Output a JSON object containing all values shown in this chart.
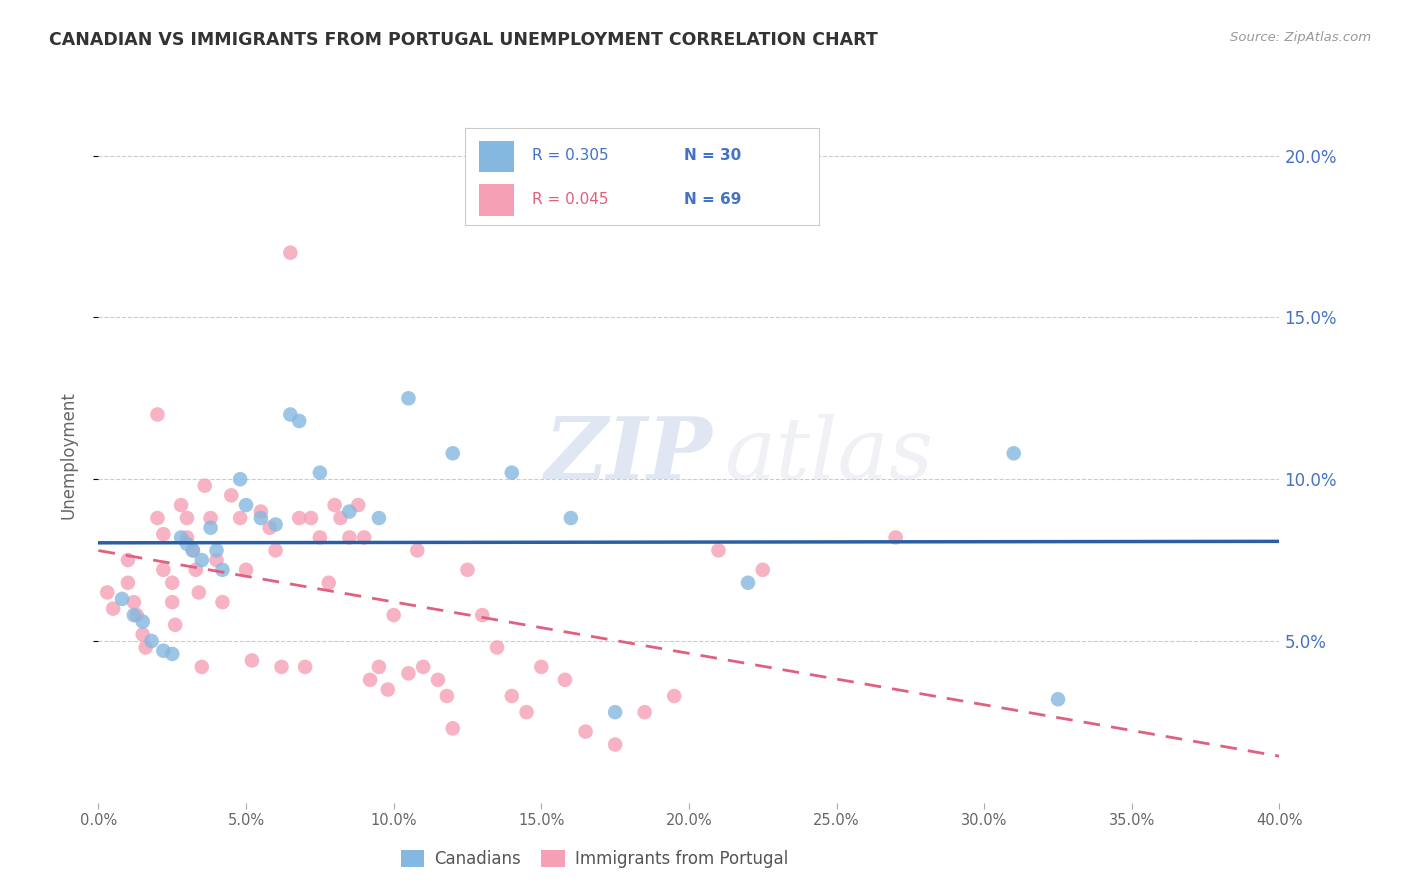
{
  "title": "CANADIAN VS IMMIGRANTS FROM PORTUGAL UNEMPLOYMENT CORRELATION CHART",
  "source": "Source: ZipAtlas.com",
  "ylabel": "Unemployment",
  "ytick_labels": [
    "5.0%",
    "10.0%",
    "15.0%",
    "20.0%"
  ],
  "ytick_values": [
    0.05,
    0.1,
    0.15,
    0.2
  ],
  "xlim": [
    0.0,
    0.4
  ],
  "ylim": [
    0.0,
    0.215
  ],
  "legend_label1": "Canadians",
  "legend_label2": "Immigrants from Portugal",
  "legend_r1": "R = 0.305",
  "legend_n1": "N = 30",
  "legend_r2": "R = 0.045",
  "legend_n2": "N = 69",
  "color_blue": "#85b8e0",
  "color_pink": "#f5a0b5",
  "line_blue": "#2a5fa5",
  "line_pink": "#e06080",
  "watermark_zip": "ZIP",
  "watermark_atlas": "atlas",
  "canadians_x": [
    0.008,
    0.012,
    0.015,
    0.018,
    0.022,
    0.025,
    0.028,
    0.03,
    0.032,
    0.035,
    0.038,
    0.04,
    0.042,
    0.048,
    0.05,
    0.055,
    0.06,
    0.065,
    0.068,
    0.075,
    0.085,
    0.095,
    0.105,
    0.12,
    0.14,
    0.16,
    0.175,
    0.22,
    0.31,
    0.325
  ],
  "canadians_y": [
    0.063,
    0.058,
    0.056,
    0.05,
    0.047,
    0.046,
    0.082,
    0.08,
    0.078,
    0.075,
    0.085,
    0.078,
    0.072,
    0.1,
    0.092,
    0.088,
    0.086,
    0.12,
    0.118,
    0.102,
    0.09,
    0.088,
    0.125,
    0.108,
    0.102,
    0.088,
    0.028,
    0.068,
    0.108,
    0.032
  ],
  "portugal_x": [
    0.003,
    0.005,
    0.01,
    0.01,
    0.012,
    0.013,
    0.015,
    0.016,
    0.02,
    0.02,
    0.022,
    0.022,
    0.025,
    0.025,
    0.026,
    0.028,
    0.03,
    0.03,
    0.032,
    0.033,
    0.034,
    0.035,
    0.036,
    0.038,
    0.04,
    0.042,
    0.045,
    0.048,
    0.05,
    0.052,
    0.055,
    0.058,
    0.06,
    0.062,
    0.065,
    0.068,
    0.07,
    0.072,
    0.075,
    0.078,
    0.08,
    0.082,
    0.085,
    0.088,
    0.09,
    0.092,
    0.095,
    0.098,
    0.1,
    0.105,
    0.108,
    0.11,
    0.115,
    0.118,
    0.12,
    0.125,
    0.13,
    0.135,
    0.14,
    0.145,
    0.15,
    0.158,
    0.165,
    0.175,
    0.185,
    0.195,
    0.21,
    0.225,
    0.27
  ],
  "portugal_y": [
    0.065,
    0.06,
    0.075,
    0.068,
    0.062,
    0.058,
    0.052,
    0.048,
    0.12,
    0.088,
    0.083,
    0.072,
    0.068,
    0.062,
    0.055,
    0.092,
    0.088,
    0.082,
    0.078,
    0.072,
    0.065,
    0.042,
    0.098,
    0.088,
    0.075,
    0.062,
    0.095,
    0.088,
    0.072,
    0.044,
    0.09,
    0.085,
    0.078,
    0.042,
    0.17,
    0.088,
    0.042,
    0.088,
    0.082,
    0.068,
    0.092,
    0.088,
    0.082,
    0.092,
    0.082,
    0.038,
    0.042,
    0.035,
    0.058,
    0.04,
    0.078,
    0.042,
    0.038,
    0.033,
    0.023,
    0.072,
    0.058,
    0.048,
    0.033,
    0.028,
    0.042,
    0.038,
    0.022,
    0.018,
    0.028,
    0.033,
    0.078,
    0.072,
    0.082
  ]
}
